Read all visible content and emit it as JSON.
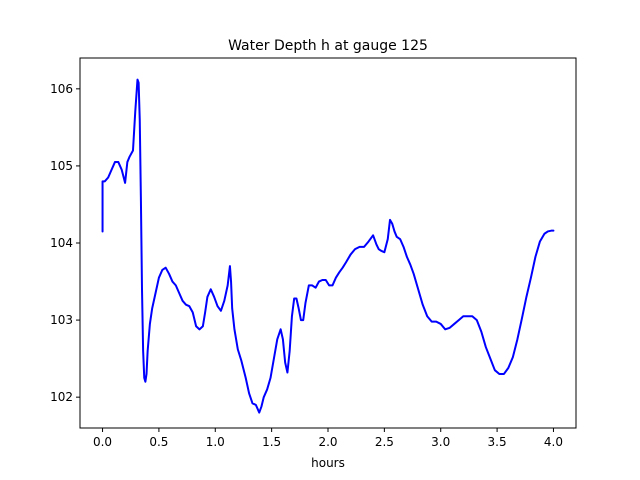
{
  "chart_data": {
    "type": "line",
    "title": "Water Depth h at gauge 125",
    "xlabel": "hours",
    "ylabel": "",
    "xlim": [
      -0.2,
      4.2
    ],
    "ylim": [
      101.6,
      106.4
    ],
    "xticks": [
      0.0,
      0.5,
      1.0,
      1.5,
      2.0,
      2.5,
      3.0,
      3.5,
      4.0
    ],
    "xtick_labels": [
      "0.0",
      "0.5",
      "1.0",
      "1.5",
      "2.0",
      "2.5",
      "3.0",
      "3.5",
      "4.0"
    ],
    "yticks": [
      102,
      103,
      104,
      105,
      106
    ],
    "ytick_labels": [
      "102",
      "103",
      "104",
      "105",
      "106"
    ],
    "grid": false,
    "series": [
      {
        "color": "#0000ff",
        "x": [
          0.0,
          0.0,
          0.02,
          0.05,
          0.08,
          0.11,
          0.14,
          0.17,
          0.2,
          0.22,
          0.24,
          0.27,
          0.29,
          0.31,
          0.32,
          0.33,
          0.34,
          0.35,
          0.36,
          0.37,
          0.38,
          0.39,
          0.4,
          0.42,
          0.44,
          0.47,
          0.5,
          0.53,
          0.56,
          0.59,
          0.62,
          0.65,
          0.68,
          0.71,
          0.74,
          0.77,
          0.8,
          0.83,
          0.86,
          0.89,
          0.91,
          0.93,
          0.96,
          0.99,
          1.02,
          1.05,
          1.08,
          1.11,
          1.13,
          1.14,
          1.15,
          1.17,
          1.2,
          1.23,
          1.27,
          1.3,
          1.33,
          1.36,
          1.39,
          1.41,
          1.43,
          1.46,
          1.49,
          1.52,
          1.55,
          1.58,
          1.6,
          1.62,
          1.64,
          1.66,
          1.68,
          1.7,
          1.72,
          1.74,
          1.76,
          1.78,
          1.8,
          1.83,
          1.86,
          1.89,
          1.92,
          1.95,
          1.98,
          2.01,
          2.04,
          2.07,
          2.1,
          2.13,
          2.16,
          2.2,
          2.24,
          2.28,
          2.32,
          2.36,
          2.4,
          2.43,
          2.45,
          2.47,
          2.5,
          2.53,
          2.55,
          2.57,
          2.59,
          2.61,
          2.64,
          2.67,
          2.7,
          2.73,
          2.76,
          2.8,
          2.84,
          2.88,
          2.92,
          2.96,
          3.0,
          3.04,
          3.08,
          3.12,
          3.16,
          3.2,
          3.24,
          3.28,
          3.32,
          3.36,
          3.4,
          3.44,
          3.48,
          3.52,
          3.56,
          3.6,
          3.64,
          3.68,
          3.72,
          3.76,
          3.8,
          3.84,
          3.88,
          3.92,
          3.95,
          3.98,
          4.0
        ],
        "y": [
          104.15,
          104.8,
          104.8,
          104.85,
          104.95,
          105.05,
          105.05,
          104.95,
          104.78,
          105.05,
          105.12,
          105.2,
          105.7,
          106.12,
          106.08,
          105.6,
          104.6,
          103.4,
          102.6,
          102.25,
          102.2,
          102.3,
          102.6,
          102.95,
          103.15,
          103.35,
          103.55,
          103.65,
          103.68,
          103.6,
          103.5,
          103.45,
          103.35,
          103.25,
          103.2,
          103.18,
          103.1,
          102.92,
          102.88,
          102.92,
          103.1,
          103.3,
          103.4,
          103.3,
          103.18,
          103.12,
          103.25,
          103.45,
          103.7,
          103.5,
          103.15,
          102.88,
          102.62,
          102.48,
          102.25,
          102.05,
          101.92,
          101.9,
          101.8,
          101.88,
          102.0,
          102.1,
          102.25,
          102.5,
          102.75,
          102.88,
          102.75,
          102.45,
          102.32,
          102.6,
          103.05,
          103.28,
          103.28,
          103.15,
          103.0,
          103.0,
          103.22,
          103.45,
          103.45,
          103.42,
          103.5,
          103.52,
          103.52,
          103.45,
          103.45,
          103.55,
          103.62,
          103.68,
          103.75,
          103.85,
          103.92,
          103.95,
          103.95,
          104.02,
          104.1,
          103.98,
          103.92,
          103.9,
          103.88,
          104.05,
          104.3,
          104.25,
          104.15,
          104.08,
          104.05,
          103.95,
          103.82,
          103.72,
          103.6,
          103.4,
          103.2,
          103.05,
          102.98,
          102.98,
          102.95,
          102.88,
          102.9,
          102.95,
          103.0,
          103.05,
          103.05,
          103.05,
          103.0,
          102.85,
          102.65,
          102.5,
          102.35,
          102.3,
          102.3,
          102.38,
          102.52,
          102.75,
          103.02,
          103.3,
          103.55,
          103.82,
          104.02,
          104.12,
          104.15,
          104.16,
          104.16
        ]
      }
    ]
  }
}
